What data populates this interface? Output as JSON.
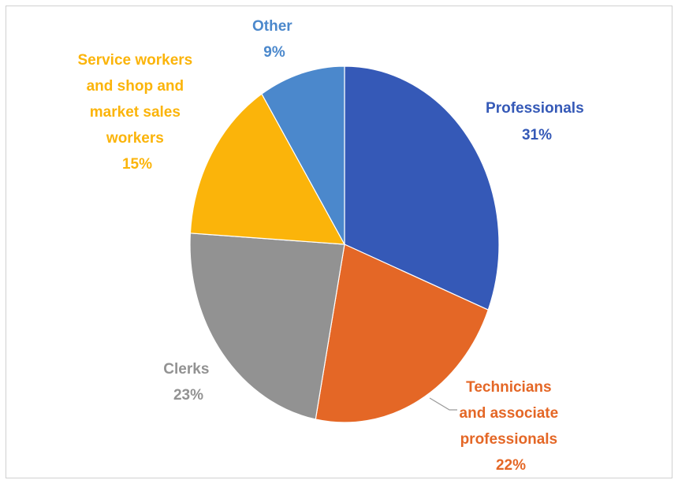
{
  "chart_data": {
    "type": "pie",
    "title": "",
    "slices": [
      {
        "label": "Professionals",
        "value": 31,
        "value_text": "31%",
        "color": "#3559b7"
      },
      {
        "label": "Technicians and associate professionals",
        "value": 22,
        "value_text": "22%",
        "color": "#e46726"
      },
      {
        "label": "Clerks",
        "value": 23,
        "value_text": "23%",
        "color": "#929292"
      },
      {
        "label": "Service workers and shop and market sales workers",
        "value": 15,
        "value_text": "15%",
        "color": "#fbb40a"
      },
      {
        "label": "Other",
        "value": 9,
        "value_text": "9%",
        "color": "#4b88cc"
      }
    ],
    "legend": "none",
    "data_labels": "outside-slice"
  }
}
